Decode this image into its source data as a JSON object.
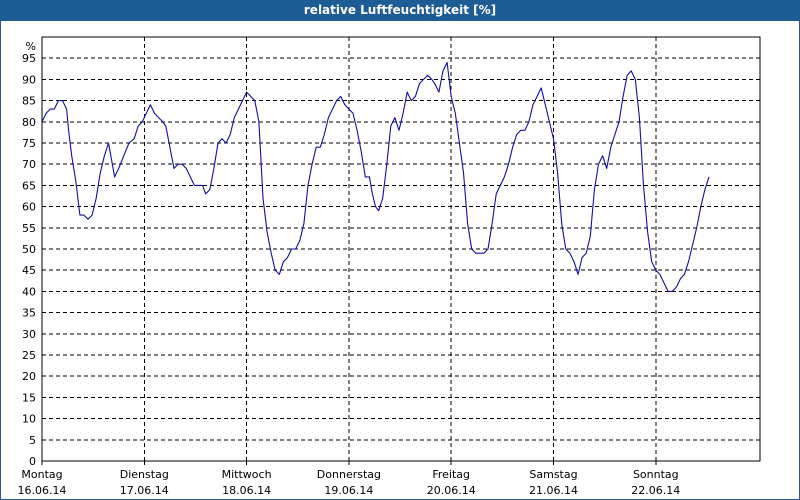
{
  "title": "relative Luftfeuchtigkeit [%]",
  "colors": {
    "title_bar": "#1e5c96",
    "series": "#1010a0",
    "grid": "#000000"
  },
  "chart_data": {
    "type": "line",
    "title": "relative Luftfeuchtigkeit [%]",
    "ylabel": "%",
    "xlabel": "",
    "ylim": [
      0,
      100
    ],
    "yticks": [
      0,
      5,
      10,
      15,
      20,
      25,
      30,
      35,
      40,
      45,
      50,
      55,
      60,
      65,
      70,
      75,
      80,
      85,
      90,
      95
    ],
    "grid": true,
    "x_unit": "days",
    "xlim": [
      0,
      7
    ],
    "x_ticks": [
      {
        "day": "Montag",
        "date": "16.06.14"
      },
      {
        "day": "Dienstag",
        "date": "17.06.14"
      },
      {
        "day": "Mittwoch",
        "date": "18.06.14"
      },
      {
        "day": "Donnerstag",
        "date": "19.06.14"
      },
      {
        "day": "Freitag",
        "date": "20.06.14"
      },
      {
        "day": "Samstag",
        "date": "21.06.14"
      },
      {
        "day": "Sonntag",
        "date": "22.06.14"
      }
    ],
    "series": [
      {
        "values": [
          [
            0.0,
            80
          ],
          [
            0.04,
            82
          ],
          [
            0.08,
            83
          ],
          [
            0.12,
            83
          ],
          [
            0.16,
            85
          ],
          [
            0.2,
            85
          ],
          [
            0.24,
            83
          ],
          [
            0.26,
            78
          ],
          [
            0.29,
            72
          ],
          [
            0.33,
            66
          ],
          [
            0.37,
            58
          ],
          [
            0.41,
            58
          ],
          [
            0.45,
            57
          ],
          [
            0.49,
            58
          ],
          [
            0.53,
            62
          ],
          [
            0.57,
            68
          ],
          [
            0.61,
            72
          ],
          [
            0.65,
            75
          ],
          [
            0.68,
            71
          ],
          [
            0.71,
            67
          ],
          [
            0.75,
            69
          ],
          [
            0.8,
            72
          ],
          [
            0.85,
            75
          ],
          [
            0.9,
            76
          ],
          [
            0.94,
            79
          ],
          [
            0.98,
            80
          ],
          [
            1.02,
            82
          ],
          [
            1.06,
            84
          ],
          [
            1.1,
            82
          ],
          [
            1.14,
            81
          ],
          [
            1.18,
            80
          ],
          [
            1.21,
            79
          ],
          [
            1.25,
            74
          ],
          [
            1.29,
            69
          ],
          [
            1.33,
            70
          ],
          [
            1.37,
            70
          ],
          [
            1.41,
            69
          ],
          [
            1.45,
            67
          ],
          [
            1.49,
            65
          ],
          [
            1.53,
            65
          ],
          [
            1.57,
            65
          ],
          [
            1.6,
            63
          ],
          [
            1.64,
            64
          ],
          [
            1.68,
            69
          ],
          [
            1.72,
            75
          ],
          [
            1.76,
            76
          ],
          [
            1.8,
            75
          ],
          [
            1.84,
            77
          ],
          [
            1.88,
            81
          ],
          [
            1.92,
            83
          ],
          [
            1.96,
            85
          ],
          [
            2.0,
            87
          ],
          [
            2.04,
            86
          ],
          [
            2.08,
            85
          ],
          [
            2.12,
            80
          ],
          [
            2.16,
            62
          ],
          [
            2.2,
            54
          ],
          [
            2.24,
            49
          ],
          [
            2.28,
            45
          ],
          [
            2.32,
            44
          ],
          [
            2.36,
            47
          ],
          [
            2.4,
            48
          ],
          [
            2.44,
            50
          ],
          [
            2.48,
            50
          ],
          [
            2.52,
            52
          ],
          [
            2.56,
            56
          ],
          [
            2.6,
            65
          ],
          [
            2.64,
            70
          ],
          [
            2.68,
            74
          ],
          [
            2.72,
            74
          ],
          [
            2.76,
            77
          ],
          [
            2.8,
            81
          ],
          [
            2.84,
            83
          ],
          [
            2.88,
            85
          ],
          [
            2.92,
            86
          ],
          [
            2.96,
            84
          ],
          [
            3.0,
            83
          ],
          [
            3.04,
            82
          ],
          [
            3.08,
            78
          ],
          [
            3.12,
            73
          ],
          [
            3.16,
            67
          ],
          [
            3.2,
            67
          ],
          [
            3.23,
            63
          ],
          [
            3.26,
            60
          ],
          [
            3.29,
            59
          ],
          [
            3.33,
            62
          ],
          [
            3.37,
            70
          ],
          [
            3.41,
            79
          ],
          [
            3.45,
            81
          ],
          [
            3.49,
            78
          ],
          [
            3.53,
            82
          ],
          [
            3.57,
            87
          ],
          [
            3.61,
            85
          ],
          [
            3.65,
            86
          ],
          [
            3.69,
            89
          ],
          [
            3.73,
            90
          ],
          [
            3.77,
            91
          ],
          [
            3.81,
            90
          ],
          [
            3.84,
            89
          ],
          [
            3.88,
            87
          ],
          [
            3.92,
            92
          ],
          [
            3.96,
            94
          ],
          [
            4.0,
            86
          ],
          [
            4.04,
            82
          ],
          [
            4.08,
            75
          ],
          [
            4.12,
            68
          ],
          [
            4.16,
            56
          ],
          [
            4.2,
            50
          ],
          [
            4.24,
            49
          ],
          [
            4.28,
            49
          ],
          [
            4.32,
            49
          ],
          [
            4.36,
            50
          ],
          [
            4.4,
            56
          ],
          [
            4.44,
            63
          ],
          [
            4.48,
            65
          ],
          [
            4.52,
            67
          ],
          [
            4.56,
            70
          ],
          [
            4.6,
            74
          ],
          [
            4.64,
            77
          ],
          [
            4.68,
            78
          ],
          [
            4.72,
            78
          ],
          [
            4.76,
            80
          ],
          [
            4.8,
            84
          ],
          [
            4.84,
            86
          ],
          [
            4.88,
            88
          ],
          [
            4.92,
            84
          ],
          [
            4.96,
            80
          ],
          [
            5.0,
            76
          ],
          [
            5.04,
            68
          ],
          [
            5.08,
            56
          ],
          [
            5.12,
            50
          ],
          [
            5.16,
            49
          ],
          [
            5.2,
            47
          ],
          [
            5.24,
            44
          ],
          [
            5.28,
            48
          ],
          [
            5.32,
            49
          ],
          [
            5.36,
            53
          ],
          [
            5.4,
            64
          ],
          [
            5.44,
            70
          ],
          [
            5.48,
            72
          ],
          [
            5.52,
            69
          ],
          [
            5.56,
            74
          ],
          [
            5.6,
            77
          ],
          [
            5.64,
            80
          ],
          [
            5.68,
            86
          ],
          [
            5.72,
            91
          ],
          [
            5.76,
            92
          ],
          [
            5.8,
            90
          ],
          [
            5.84,
            81
          ],
          [
            5.88,
            65
          ],
          [
            5.92,
            54
          ],
          [
            5.96,
            47
          ],
          [
            6.0,
            45
          ],
          [
            6.04,
            44
          ],
          [
            6.08,
            42
          ],
          [
            6.12,
            40
          ],
          [
            6.16,
            40
          ],
          [
            6.2,
            41
          ],
          [
            6.24,
            43
          ],
          [
            6.28,
            44
          ],
          [
            6.32,
            47
          ],
          [
            6.36,
            51
          ],
          [
            6.4,
            55
          ],
          [
            6.44,
            60
          ],
          [
            6.48,
            64
          ],
          [
            6.52,
            67
          ]
        ]
      }
    ]
  }
}
